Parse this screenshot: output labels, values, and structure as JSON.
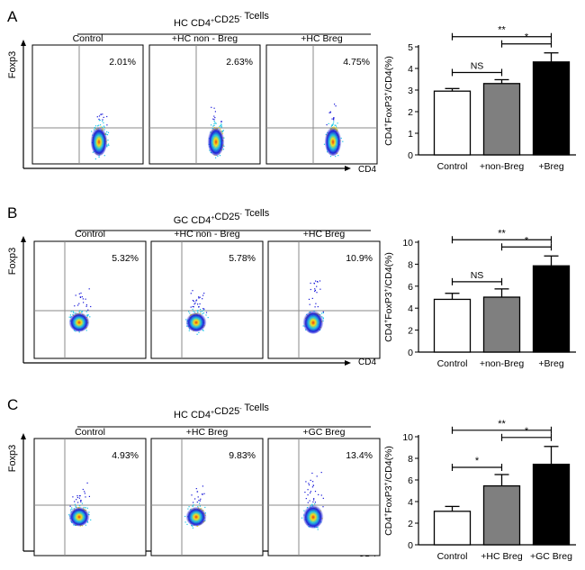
{
  "colors": {
    "axis": "#000000",
    "control_bar": "#ffffff",
    "middle_bar": "#7f7f7f",
    "treatment_bar": "#000000",
    "gate_line": "#8a8a8a",
    "density_low": "#1515d8",
    "density_mid": "#19c6e6",
    "density_high_a": "#f5e51c",
    "density_high_b": "#e83a12"
  },
  "panels": [
    {
      "letter": "A",
      "title": "HC CD4",
      "title_sup": "+",
      "title_mid": "CD25",
      "title_sup2": "-",
      "title_end": " Tcells",
      "y_marker": "Foxp3",
      "x_marker": "CD4",
      "plots": [
        {
          "label": "Control",
          "percent": "2.01%"
        },
        {
          "label": "+HC non - Breg",
          "percent": "2.63%"
        },
        {
          "label": "+HC Breg",
          "percent": "4.75%"
        }
      ],
      "y_label_parts": [
        "CD4",
        "+",
        "FoxP3",
        "+",
        "/CD4(%)"
      ],
      "chart_data": {
        "type": "bar",
        "categories": [
          "Control",
          "+non-Breg",
          "+Breg"
        ],
        "values": [
          2.95,
          3.3,
          4.3
        ],
        "errors": [
          0.12,
          0.18,
          0.42
        ],
        "ylim": [
          0,
          5
        ],
        "yticks": [
          "0",
          "1",
          "2",
          "3",
          "4",
          "5"
        ],
        "significance": [
          {
            "from": 0,
            "to": 1,
            "label": "NS"
          },
          {
            "from": 1,
            "to": 2,
            "label": "*"
          },
          {
            "from": 0,
            "to": 2,
            "label": "**"
          }
        ]
      }
    },
    {
      "letter": "B",
      "title": "GC CD4",
      "title_sup": "+",
      "title_mid": "CD25",
      "title_sup2": "-",
      "title_end": " Tcells",
      "y_marker": "Foxp3",
      "x_marker": "CD4",
      "plots": [
        {
          "label": "Control",
          "percent": "5.32%"
        },
        {
          "label": "+HC non - Breg",
          "percent": "5.78%"
        },
        {
          "label": "+HC Breg",
          "percent": "10.9%"
        }
      ],
      "y_label_parts": [
        "CD4",
        "+",
        "FoxP3",
        "+",
        "/CD4(%)"
      ],
      "chart_data": {
        "type": "bar",
        "categories": [
          "Control",
          "+non-Breg",
          "+Breg"
        ],
        "values": [
          4.8,
          5.0,
          7.85
        ],
        "errors": [
          0.55,
          0.75,
          0.9
        ],
        "ylim": [
          0,
          10
        ],
        "yticks": [
          "0",
          "2",
          "4",
          "6",
          "8",
          "10"
        ],
        "significance": [
          {
            "from": 0,
            "to": 1,
            "label": "NS"
          },
          {
            "from": 1,
            "to": 2,
            "label": "*"
          },
          {
            "from": 0,
            "to": 2,
            "label": "**"
          }
        ]
      }
    },
    {
      "letter": "C",
      "title": "HC CD4",
      "title_sup": "+",
      "title_mid": "CD25",
      "title_sup2": "-",
      "title_end": " Tcells",
      "y_marker": "Foxp3",
      "x_marker": "CD4",
      "plots": [
        {
          "label": "Control",
          "percent": "4.93%"
        },
        {
          "label": "+HC  Breg",
          "percent": "9.83%"
        },
        {
          "label": "+GC  Breg",
          "percent": "13.4%"
        }
      ],
      "y_label_parts": [
        "CD4",
        "+",
        "FoxP3",
        "+",
        "/CD4(%)"
      ],
      "chart_data": {
        "type": "bar",
        "categories": [
          "Control",
          "+HC Breg",
          "+GC Breg"
        ],
        "values": [
          3.1,
          5.45,
          7.45
        ],
        "errors": [
          0.45,
          1.05,
          1.65
        ],
        "ylim": [
          0,
          10
        ],
        "yticks": [
          "0",
          "2",
          "4",
          "6",
          "8",
          "10"
        ],
        "significance": [
          {
            "from": 0,
            "to": 1,
            "label": "*"
          },
          {
            "from": 1,
            "to": 2,
            "label": "*"
          },
          {
            "from": 0,
            "to": 2,
            "label": "**"
          }
        ]
      }
    }
  ]
}
